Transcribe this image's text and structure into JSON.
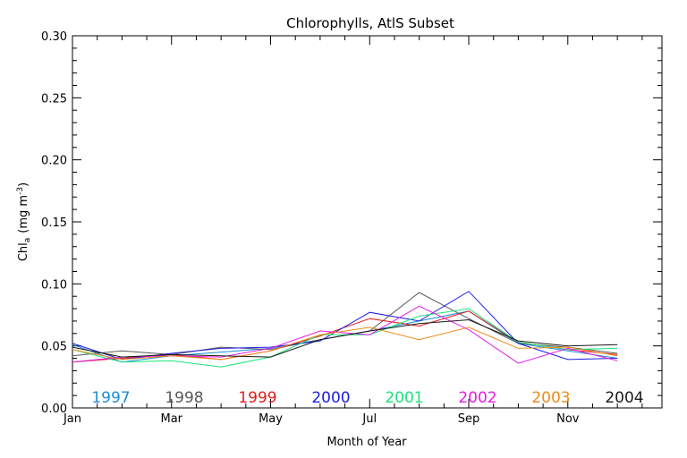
{
  "chart_data": {
    "type": "line",
    "title": "Chlorophylls, AtlS Subset",
    "xlabel": "Month of Year",
    "ylabel_main": "Chl",
    "ylabel_sub": "a",
    "ylabel_units_open": "(mg m",
    "ylabel_units_sup": "-3",
    "ylabel_units_close": ")",
    "xlim": [
      0,
      11.9
    ],
    "ylim": [
      0,
      0.3
    ],
    "x_ticks": [
      {
        "value": 0,
        "label": "Jan"
      },
      {
        "value": 2,
        "label": "Mar"
      },
      {
        "value": 4,
        "label": "May"
      },
      {
        "value": 6,
        "label": "Jul"
      },
      {
        "value": 8,
        "label": "Sep"
      },
      {
        "value": 10,
        "label": "Nov"
      }
    ],
    "y_ticks": [
      "0.00",
      "0.05",
      "0.10",
      "0.15",
      "0.20",
      "0.25",
      "0.30"
    ],
    "x": [
      0,
      1,
      2,
      3,
      4,
      5,
      6,
      7,
      8,
      9,
      10,
      11
    ],
    "series": [
      {
        "name": "1997",
        "color": "#1b8fd6",
        "values": [
          0.051,
          0.037,
          0.042,
          0.045,
          0.048,
          0.055,
          0.062,
          0.07,
          0.078,
          0.052,
          0.046,
          0.04
        ]
      },
      {
        "name": "1998",
        "color": "#5a5a5a",
        "values": [
          0.042,
          0.046,
          0.043,
          0.049,
          0.047,
          0.055,
          0.062,
          0.093,
          0.072,
          0.052,
          0.049,
          0.044
        ]
      },
      {
        "name": "1999",
        "color": "#e41c1c",
        "values": [
          0.037,
          0.04,
          0.043,
          0.039,
          0.046,
          0.058,
          0.072,
          0.066,
          0.078,
          0.053,
          0.047,
          0.043
        ]
      },
      {
        "name": "2000",
        "color": "#1c1ce6",
        "values": [
          0.052,
          0.039,
          0.044,
          0.048,
          0.049,
          0.054,
          0.077,
          0.07,
          0.094,
          0.052,
          0.039,
          0.04
        ]
      },
      {
        "name": "2001",
        "color": "#1be37a",
        "values": [
          0.047,
          0.037,
          0.038,
          0.033,
          0.041,
          0.059,
          0.059,
          0.074,
          0.08,
          0.053,
          0.047,
          0.048
        ]
      },
      {
        "name": "2002",
        "color": "#e61ce6",
        "values": [
          0.037,
          0.041,
          0.042,
          0.041,
          0.048,
          0.062,
          0.059,
          0.082,
          0.063,
          0.036,
          0.048,
          0.038
        ]
      },
      {
        "name": "2003",
        "color": "#f08a1c",
        "values": [
          0.047,
          0.039,
          0.042,
          0.039,
          0.046,
          0.059,
          0.065,
          0.055,
          0.065,
          0.048,
          0.049,
          0.042
        ]
      },
      {
        "name": "2004",
        "color": "#1a1a1a",
        "values": [
          0.049,
          0.041,
          0.043,
          0.042,
          0.041,
          0.055,
          0.062,
          0.068,
          0.071,
          0.054,
          0.05,
          0.051
        ]
      }
    ],
    "grid": false,
    "legend_placement": "bottom inside plot"
  }
}
